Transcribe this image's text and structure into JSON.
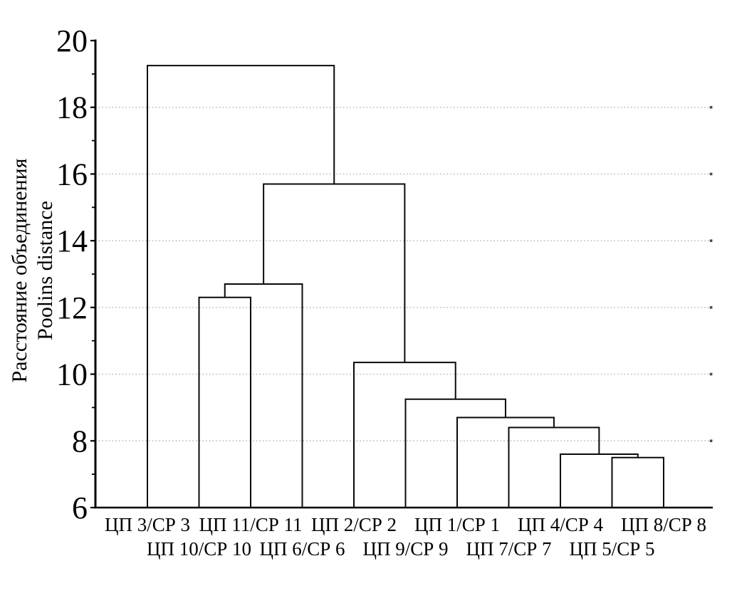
{
  "chart_data": {
    "type": "dendrogram",
    "title": "",
    "ylabel_line1": "Расстояние объединения",
    "ylabel_line2": "Poolins distance",
    "ylim": [
      6,
      20
    ],
    "yticks": [
      {
        "value": 6,
        "label": "6"
      },
      {
        "value": 8,
        "label": "8"
      },
      {
        "value": 10,
        "label": "10"
      },
      {
        "value": 12,
        "label": "12"
      },
      {
        "value": 14,
        "label": "14"
      },
      {
        "value": 16,
        "label": "16"
      },
      {
        "value": 18,
        "label": "18"
      },
      {
        "value": 20,
        "label": "20"
      }
    ],
    "ytick_minor_values": [
      7,
      9,
      11,
      13,
      15,
      17,
      19
    ],
    "gridline_values": [
      8,
      10,
      12,
      14,
      16,
      18
    ],
    "grid_style": "dotted",
    "legend": "none",
    "leaves": [
      "ЦП 3/СР 3",
      "ЦП 10/СР 10",
      "ЦП 11/СР 11",
      "ЦП 6/СР 6",
      "ЦП 2/СР 2",
      "ЦП 9/СР 9",
      "ЦП 1/СР 1",
      "ЦП 7/СР 7",
      "ЦП 4/СР 4",
      "ЦП 5/СР 5",
      "ЦП 8/СР 8"
    ],
    "leaf_label_rows": [
      1,
      2,
      1,
      2,
      1,
      2,
      1,
      2,
      1,
      2,
      1
    ],
    "merges": [
      {
        "id": "M0",
        "left": "L9",
        "right": "L10",
        "height": 7.5
      },
      {
        "id": "M1",
        "left": "L8",
        "right": "M0",
        "height": 7.6
      },
      {
        "id": "M2",
        "left": "L7",
        "right": "M1",
        "height": 8.4
      },
      {
        "id": "M3",
        "left": "L6",
        "right": "M2",
        "height": 8.7
      },
      {
        "id": "M4",
        "left": "L5",
        "right": "M3",
        "height": 9.25
      },
      {
        "id": "M5",
        "left": "L4",
        "right": "M4",
        "height": 10.35
      },
      {
        "id": "M6",
        "left": "L1",
        "right": "L2",
        "height": 12.3
      },
      {
        "id": "M7",
        "left": "M6",
        "right": "L3",
        "height": 12.7
      },
      {
        "id": "M8",
        "left": "M7",
        "right": "M5",
        "height": 15.7
      },
      {
        "id": "M9",
        "left": "L0",
        "right": "M8",
        "height": 19.25
      }
    ],
    "colors": {
      "line": "#0a0a0a",
      "axis": "#000000",
      "grid": "#b5b5b5",
      "grid_endcap": "#4a4a4a",
      "text": "#000000",
      "background": "#ffffff"
    }
  }
}
